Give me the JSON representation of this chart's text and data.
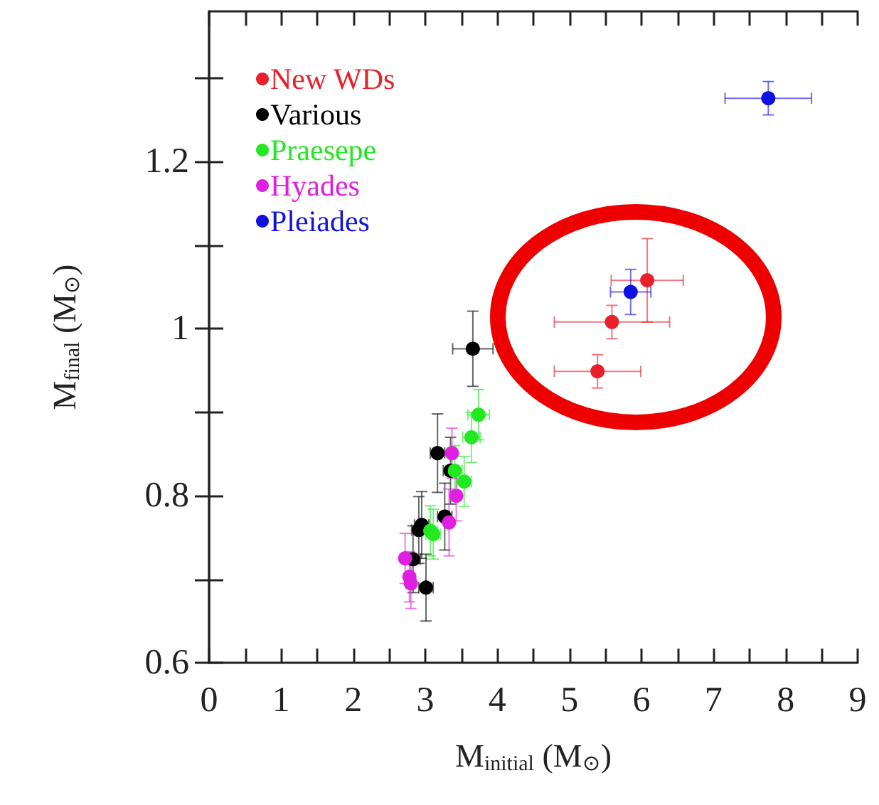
{
  "chart_data": {
    "type": "scatter",
    "xlabel": "M$_{initial}$ (M$_{⊙}$)",
    "ylabel": "M$_{final}$ (M$_{⊙}$)",
    "xlim": [
      0,
      9
    ],
    "ylim": [
      0.6,
      1.38
    ],
    "xticks": [
      0,
      {
        "value": 0.5,
        "label": null
      },
      1,
      {
        "value": 1.5,
        "label": null
      },
      2,
      {
        "value": 2.5,
        "label": null
      },
      3,
      {
        "value": 3.5,
        "label": null
      },
      4,
      {
        "value": 4.5,
        "label": null
      },
      5,
      {
        "value": 5.5,
        "label": null
      },
      6,
      {
        "value": 6.5,
        "label": null
      },
      7,
      {
        "value": 7.5,
        "label": null
      },
      8,
      {
        "value": 8.5,
        "label": null
      },
      9
    ],
    "yticks": [
      0.6,
      {
        "value": 0.7,
        "label": null
      },
      0.8,
      {
        "value": 0.9,
        "label": null
      },
      1,
      {
        "value": 1.1,
        "label": null
      },
      1.2,
      {
        "value": 1.3,
        "label": null
      }
    ],
    "grid": false,
    "legend": "top left",
    "marker": "circle",
    "series": [
      {
        "name": "New WDs",
        "color": "#e8202a",
        "x": [
          6.08,
          5.59,
          5.39
        ],
        "values": [
          1.058,
          1.008,
          0.949
        ],
        "errors": [
          0.05,
          0.02,
          0.02
        ],
        "xerrors": [
          0.5,
          0.8,
          0.6
        ]
      },
      {
        "name": "Various",
        "color": "#000000",
        "x": [
          3.66,
          3.17,
          3.35,
          3.27,
          2.91,
          2.95,
          2.83,
          3.01
        ],
        "values": [
          0.976,
          0.851,
          0.83,
          0.775,
          0.759,
          0.765,
          0.724,
          0.69
        ],
        "errors": [
          0.045,
          0.047,
          0.04,
          0.04,
          0.04,
          0.04,
          0.04,
          0.04
        ],
        "xerrors": [
          0.28,
          0.1,
          0.1,
          0.1,
          0.1,
          0.1,
          0.1,
          0.1
        ]
      },
      {
        "name": "Praesepe",
        "color": "#22e822",
        "x": [
          3.74,
          3.64,
          3.41,
          3.54,
          3.07,
          3.11
        ],
        "values": [
          0.897,
          0.87,
          0.83,
          0.817,
          0.758,
          0.754
        ],
        "errors": [
          0.03,
          0.03,
          0.03,
          0.03,
          0.03,
          0.03
        ],
        "xerrors": [
          0.15,
          0.12,
          0.1,
          0.1,
          0.1,
          0.1
        ]
      },
      {
        "name": "Hyades",
        "color": "#e020e0",
        "x": [
          3.37,
          3.43,
          3.33,
          2.72,
          2.78,
          2.8
        ],
        "values": [
          0.851,
          0.8,
          0.768,
          0.725,
          0.703,
          0.695
        ],
        "errors": [
          0.03,
          0.03,
          0.04,
          0.03,
          0.03,
          0.03
        ]
      },
      {
        "name": "Pleiades",
        "color": "#1010e0",
        "x": [
          7.76,
          5.85
        ],
        "values": [
          1.276,
          1.044
        ],
        "errors": [
          0.02,
          0.027
        ],
        "xerrors": [
          0.6,
          0.28
        ]
      }
    ]
  }
}
